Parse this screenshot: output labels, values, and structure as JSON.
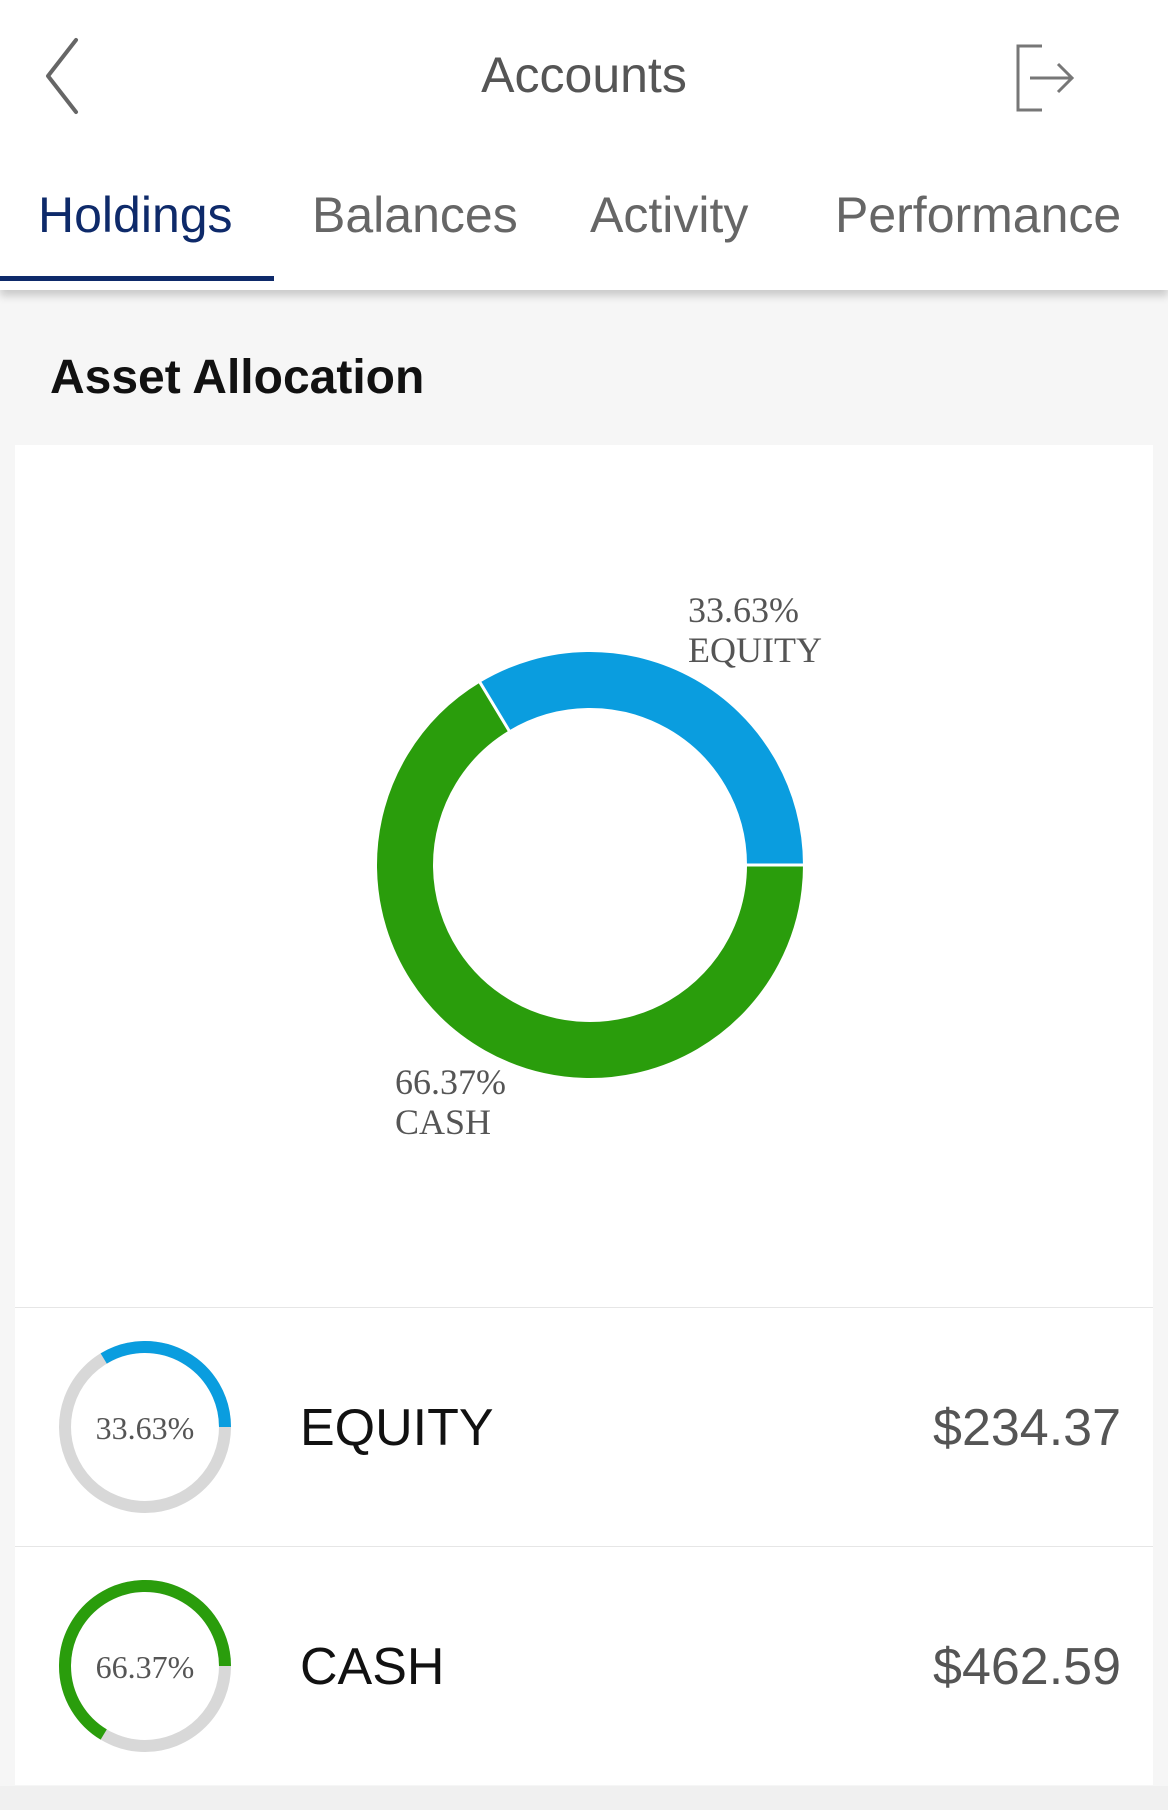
{
  "header": {
    "title": "Accounts",
    "back_icon": "chevron-left-icon",
    "logout_icon": "logout-icon"
  },
  "tabs": [
    {
      "label": "Holdings",
      "active": true
    },
    {
      "label": "Balances",
      "active": false
    },
    {
      "label": "Activity",
      "active": false
    },
    {
      "label": "Performance",
      "active": false
    }
  ],
  "section": {
    "title": "Asset Allocation"
  },
  "colors": {
    "equity": "#0a9ddf",
    "cash": "#2a9d0c",
    "track": "#d8d8d8",
    "accent": "#0e2a6a"
  },
  "chart_data": {
    "type": "pie",
    "style": "donut",
    "slices": [
      {
        "label": "EQUITY",
        "percent": 33.63,
        "percent_label": "33.63%",
        "color": "#0a9ddf"
      },
      {
        "label": "CASH",
        "percent": 66.37,
        "percent_label": "66.37%",
        "color": "#2a9d0c"
      }
    ]
  },
  "holdings": [
    {
      "name": "EQUITY",
      "percent": 33.63,
      "percent_label": "33.63%",
      "value": "$234.37",
      "color": "#0a9ddf"
    },
    {
      "name": "CASH",
      "percent": 66.37,
      "percent_label": "66.37%",
      "value": "$462.59",
      "color": "#2a9d0c"
    }
  ]
}
